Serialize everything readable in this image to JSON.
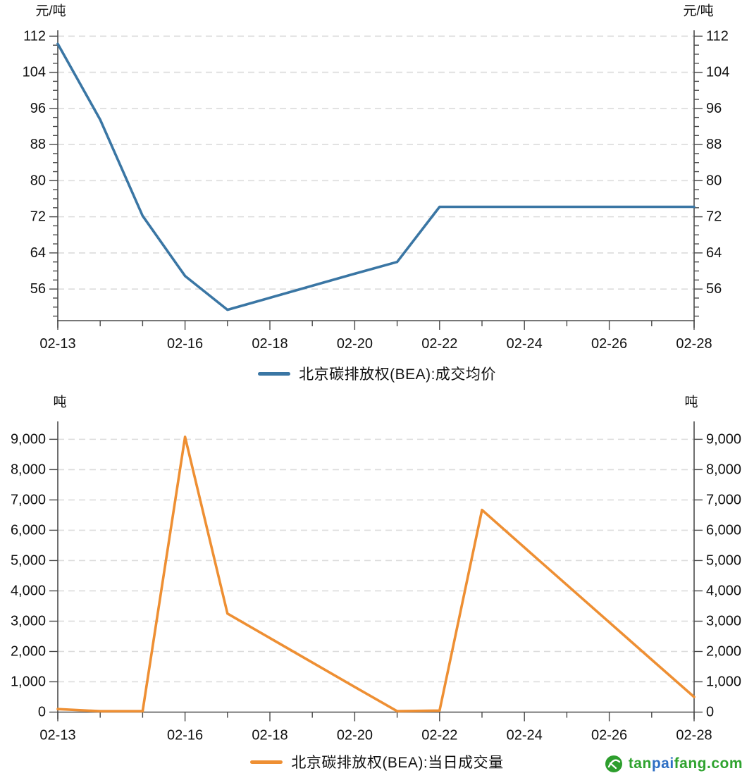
{
  "page": {
    "background": "#ffffff"
  },
  "watermark": {
    "logo_icon": "globe-leaf-icon",
    "logo_color": "#2d9e2d",
    "text_parts": [
      {
        "text": "tan",
        "color": "#2fa32f"
      },
      {
        "text": "pai",
        "color": "#2e6fc4"
      },
      {
        "text": "fang.com",
        "color": "#2fa32f"
      }
    ]
  },
  "chart_data": [
    {
      "type": "line",
      "title": "",
      "grid": "horizontal-dashed",
      "legend_position": "bottom-center",
      "x_axis": {
        "range": [
          "02-13",
          "02-28"
        ],
        "labeled_ticks": [
          "02-13",
          "02-16",
          "02-18",
          "02-20",
          "02-22",
          "02-24",
          "02-26",
          "02-28"
        ],
        "minor_tick_dates": [
          "02-14",
          "02-15",
          "02-17",
          "02-19",
          "02-21",
          "02-23",
          "02-25",
          "02-27"
        ]
      },
      "y_axis": {
        "unit": "元/吨",
        "range": [
          49,
          113.3
        ],
        "major_ticks": [
          {
            "value": 56,
            "label": "56"
          },
          {
            "value": 64,
            "label": "64"
          },
          {
            "value": 72,
            "label": "72"
          },
          {
            "value": 80,
            "label": "80"
          },
          {
            "value": 88,
            "label": "88"
          },
          {
            "value": 96,
            "label": "96"
          },
          {
            "value": 104,
            "label": "104"
          },
          {
            "value": 112,
            "label": "112"
          }
        ],
        "minor_tick_step": 2,
        "minor_tick_range": [
          50,
          112
        ]
      },
      "series": [
        {
          "name": "北京碳排放权(BEA):成交均价",
          "color": "#3a76a4",
          "points": [
            [
              "02-13",
              110.3
            ],
            [
              "02-14",
              93.5
            ],
            [
              "02-15",
              72.2
            ],
            [
              "02-16",
              58.9
            ],
            [
              "02-17",
              51.4
            ],
            [
              "02-20",
              59.4
            ],
            [
              "02-21",
              62.0
            ],
            [
              "02-22",
              74.2
            ],
            [
              "02-23",
              74.2
            ],
            [
              "02-24",
              74.2
            ],
            [
              "02-27",
              74.2
            ],
            [
              "02-28",
              74.2
            ]
          ]
        }
      ]
    },
    {
      "type": "line",
      "title": "",
      "grid": "horizontal-dashed",
      "legend_position": "bottom-center",
      "x_axis": {
        "range": [
          "02-13",
          "02-28"
        ],
        "labeled_ticks": [
          "02-13",
          "02-16",
          "02-18",
          "02-20",
          "02-22",
          "02-24",
          "02-26",
          "02-28"
        ],
        "minor_tick_dates": [
          "02-14",
          "02-15",
          "02-17",
          "02-19",
          "02-21",
          "02-23",
          "02-25",
          "02-27"
        ]
      },
      "y_axis": {
        "unit": "吨",
        "range": [
          0,
          9590
        ],
        "major_ticks": [
          {
            "value": 0,
            "label": "0"
          },
          {
            "value": 1000,
            "label": "1,000"
          },
          {
            "value": 2000,
            "label": "2,000"
          },
          {
            "value": 3000,
            "label": "3,000"
          },
          {
            "value": 4000,
            "label": "4,000"
          },
          {
            "value": 5000,
            "label": "5,000"
          },
          {
            "value": 6000,
            "label": "6,000"
          },
          {
            "value": 7000,
            "label": "7,000"
          },
          {
            "value": 8000,
            "label": "8,000"
          },
          {
            "value": 9000,
            "label": "9,000"
          }
        ],
        "minor_tick_step": null,
        "minor_tick_range": null
      },
      "series": [
        {
          "name": "北京碳排放权(BEA):当日成交量",
          "color": "#ee8f33",
          "points": [
            [
              "02-13",
              100
            ],
            [
              "02-14",
              30
            ],
            [
              "02-15",
              30
            ],
            [
              "02-16",
              9080
            ],
            [
              "02-17",
              3250
            ],
            [
              "02-20",
              830
            ],
            [
              "02-21",
              30
            ],
            [
              "02-22",
              50
            ],
            [
              "02-23",
              6670
            ],
            [
              "02-24",
              5430
            ],
            [
              "02-27",
              1730
            ],
            [
              "02-28",
              500
            ]
          ]
        }
      ]
    }
  ]
}
